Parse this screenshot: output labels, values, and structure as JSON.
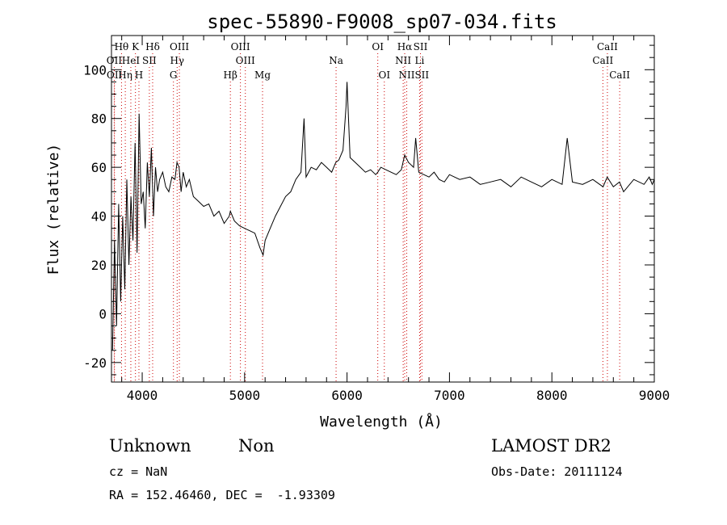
{
  "chart_data": {
    "type": "line",
    "title": "spec-55890-F9008_sp07-034.fits",
    "xlabel": "Wavelength (Å)",
    "ylabel": "Flux (relative)",
    "xlim": [
      3700,
      9000
    ],
    "ylim": [
      -28,
      114
    ],
    "x_ticks": [
      4000,
      5000,
      6000,
      7000,
      8000,
      9000
    ],
    "y_ticks": [
      -20,
      0,
      20,
      40,
      60,
      80,
      100
    ],
    "grid": false,
    "line_color": "#000000",
    "marker_color": "#cc0000",
    "series": [
      {
        "x": [
          3710,
          3730,
          3750,
          3770,
          3790,
          3810,
          3830,
          3850,
          3870,
          3890,
          3910,
          3930,
          3950,
          3970,
          3990,
          4010,
          4030,
          4050,
          4070,
          4090,
          4110,
          4130,
          4150,
          4170,
          4200,
          4230,
          4260,
          4290,
          4320,
          4340,
          4360,
          4380,
          4400,
          4430,
          4460,
          4500,
          4550,
          4600,
          4650,
          4700,
          4750,
          4800,
          4850,
          4861,
          4900,
          4950,
          5000,
          5050,
          5100,
          5150,
          5180,
          5200,
          5250,
          5300,
          5350,
          5400,
          5450,
          5500,
          5550,
          5580,
          5600,
          5650,
          5700,
          5750,
          5800,
          5850,
          5890,
          5920,
          5960,
          5990,
          6000,
          6030,
          6080,
          6130,
          6180,
          6230,
          6280,
          6300,
          6330,
          6380,
          6430,
          6480,
          6530,
          6563,
          6600,
          6650,
          6670,
          6700,
          6750,
          6800,
          6850,
          6900,
          6950,
          7000,
          7100,
          7200,
          7300,
          7400,
          7500,
          7600,
          7700,
          7800,
          7900,
          8000,
          8100,
          8150,
          8200,
          8300,
          8400,
          8500,
          8540,
          8600,
          8660,
          8700,
          8800,
          8900,
          8950,
          8980,
          9000
        ],
        "y": [
          -15,
          30,
          -5,
          45,
          5,
          40,
          10,
          55,
          20,
          48,
          30,
          70,
          25,
          82,
          45,
          50,
          35,
          62,
          48,
          68,
          40,
          60,
          50,
          55,
          58,
          52,
          50,
          56,
          55,
          62,
          60,
          50,
          58,
          52,
          55,
          48,
          46,
          44,
          45,
          40,
          42,
          37,
          40,
          42,
          38,
          36,
          35,
          34,
          33,
          27,
          24,
          30,
          35,
          40,
          44,
          48,
          50,
          55,
          58,
          80,
          56,
          60,
          59,
          62,
          60,
          58,
          62,
          63,
          67,
          85,
          95,
          64,
          62,
          60,
          58,
          59,
          57,
          58,
          60,
          59,
          58,
          57,
          59,
          65,
          62,
          60,
          72,
          58,
          57,
          56,
          58,
          55,
          54,
          57,
          55,
          56,
          53,
          54,
          55,
          52,
          56,
          54,
          52,
          55,
          53,
          72,
          54,
          53,
          55,
          52,
          56,
          52,
          54,
          50,
          55,
          53,
          56,
          53,
          55
        ]
      }
    ],
    "line_markers": [
      {
        "label": "Hθ",
        "x": 3798,
        "row": 1
      },
      {
        "label": "K",
        "x": 3934,
        "row": 1
      },
      {
        "label": "Hδ",
        "x": 4102,
        "row": 1
      },
      {
        "label": "OIII",
        "x": 4363,
        "row": 1
      },
      {
        "label": "OIII",
        "x": 4959,
        "row": 1
      },
      {
        "label": "OI",
        "x": 6300,
        "row": 1
      },
      {
        "label": "Hα",
        "x": 6563,
        "row": 1
      },
      {
        "label": "SII",
        "x": 6717,
        "row": 1
      },
      {
        "label": "CaII",
        "x": 8542,
        "row": 1
      },
      {
        "label": "OII",
        "x": 3727,
        "row": 2
      },
      {
        "label": "HeI",
        "x": 3889,
        "row": 2
      },
      {
        "label": "SII",
        "x": 4070,
        "row": 2
      },
      {
        "label": "Hγ",
        "x": 4341,
        "row": 2
      },
      {
        "label": "OIII",
        "x": 5007,
        "row": 2
      },
      {
        "label": "Na",
        "x": 5893,
        "row": 2
      },
      {
        "label": "NII",
        "x": 6548,
        "row": 2
      },
      {
        "label": "Li",
        "x": 6708,
        "row": 2
      },
      {
        "label": "CaII",
        "x": 8498,
        "row": 2
      },
      {
        "label": "OII",
        "x": 3729,
        "row": 3
      },
      {
        "label": "Hη",
        "x": 3835,
        "row": 3
      },
      {
        "label": "H",
        "x": 3968,
        "row": 3
      },
      {
        "label": "G",
        "x": 4305,
        "row": 3
      },
      {
        "label": "Hβ",
        "x": 4861,
        "row": 3
      },
      {
        "label": "Mg",
        "x": 5175,
        "row": 3
      },
      {
        "label": "OI",
        "x": 6364,
        "row": 3
      },
      {
        "label": "NII",
        "x": 6583,
        "row": 3
      },
      {
        "label": "SII",
        "x": 6731,
        "row": 3
      },
      {
        "label": "CaII",
        "x": 8662,
        "row": 3
      }
    ]
  },
  "footer": {
    "object_class": "Unknown",
    "subclass": "Non",
    "survey": "LAMOST DR2",
    "redshift": "cz = NaN",
    "obs_date": "Obs-Date: 20111124",
    "coords": "RA = 152.46460, DEC =  -1.93309"
  }
}
